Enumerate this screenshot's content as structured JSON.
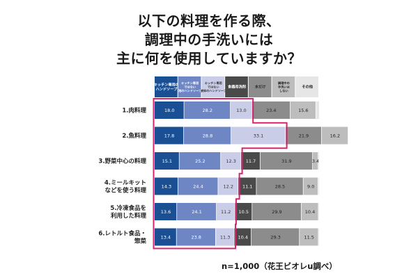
{
  "chart_data": {
    "type": "bar",
    "orientation": "horizontal",
    "stacked": true,
    "title": "以下の料理を作る際、\n調理中の手洗いには\n主に何を使用していますか？",
    "title_lines": [
      "以下の料理を作る際、",
      "調理中の手洗いには",
      "主に何を使用していますか？"
    ],
    "categories": [
      [
        "1.肉料理"
      ],
      [
        "2.魚料理"
      ],
      [
        "3.野菜中心の料理"
      ],
      [
        "4.ミールキット",
        "などを使う料理"
      ],
      [
        "5.冷凍食品を",
        "利用した料理"
      ],
      [
        "6.レトルト食品・",
        "惣菜"
      ]
    ],
    "series": [
      {
        "name": "キッチン専用のハンドソープ",
        "legend_lines": [
          "キッチン専用の",
          "ハンドソープ"
        ],
        "color": "#1b4f93",
        "label_color": "#ffffff",
        "values": [
          18.0,
          17.8,
          15.1,
          14.3,
          13.6,
          13.4
        ]
      },
      {
        "name": "キッチン専用ではない泡のハンドソープ",
        "legend_lines": [
          "キッチン専用",
          "ではない",
          "泡のハンドソープ"
        ],
        "color": "#6f86c4",
        "label_color": "#ffffff",
        "values": [
          28.2,
          28.8,
          25.2,
          24.4,
          24.1,
          23.8
        ]
      },
      {
        "name": "キッチン専用ではない液体のハンドソープ",
        "legend_lines": [
          "キッチン専用",
          "ではない",
          "液体のハンドソープ"
        ],
        "color": "#c9cde8",
        "label_color": "#333333",
        "values": [
          13.0,
          33.1,
          12.3,
          12.2,
          11.2,
          11.3
        ]
      },
      {
        "name": "食器用洗剤",
        "legend_lines": [
          "食器用洗剤"
        ],
        "color": "#4a4a4a",
        "label_color": "#ffffff",
        "values": [
          null,
          null,
          11.7,
          11.1,
          10.5,
          10.4
        ]
      },
      {
        "name": "水だけ",
        "legend_lines": [
          "水だけ"
        ],
        "color": "#8c8c8c",
        "label_color": "#222222",
        "values": [
          23.4,
          21.9,
          31.9,
          28.5,
          29.9,
          29.3
        ]
      },
      {
        "name": "調理中の手洗いはしない",
        "legend_lines": [
          "調理中の",
          "手洗いは",
          "しない"
        ],
        "color": "#bdbdbd",
        "label_color": "#222222",
        "values": [
          15.6,
          16.2,
          3.4,
          9.0,
          10.4,
          11.5
        ]
      },
      {
        "name": "その他",
        "legend_lines": [
          "その他"
        ],
        "color": "#e6e6e6",
        "label_color": "#222222",
        "values": [
          null,
          null,
          null,
          null,
          null,
          null
        ]
      }
    ],
    "xlim": [
      0,
      100
    ],
    "highlight": {
      "color": "#d6246e",
      "series_indices": [
        0,
        1,
        2
      ]
    },
    "xlabel": "",
    "ylabel": "",
    "grid": false,
    "legend_position": "top"
  },
  "footnote": "n=1,000（花王ビオレu調べ）"
}
